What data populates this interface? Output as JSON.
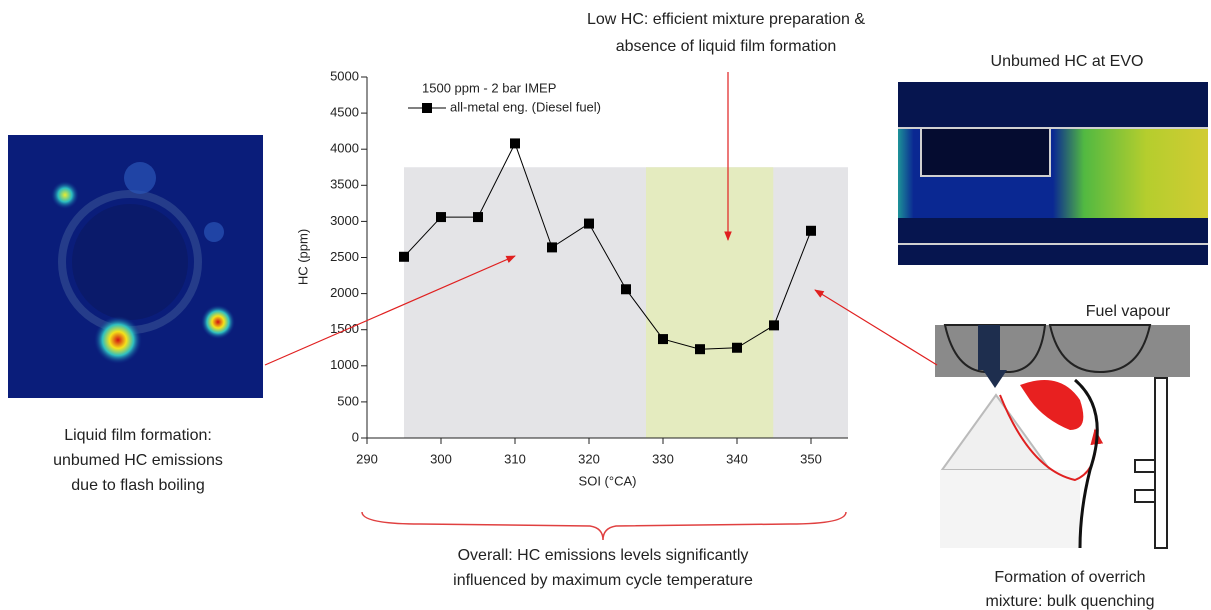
{
  "chart_data": {
    "type": "line",
    "note": "1500 ppm - 2 bar IMEP",
    "x": [
      295,
      300,
      305,
      310,
      315,
      320,
      325,
      330,
      335,
      340,
      345,
      350
    ],
    "series": [
      {
        "name": "all-metal eng. (Diesel fuel)",
        "color": "#000000",
        "values": [
          2510,
          3060,
          3060,
          4080,
          2640,
          2970,
          2060,
          1370,
          1230,
          1250,
          1560,
          2870
        ]
      }
    ],
    "xlabel": "SOI (°CA)",
    "ylabel": "HC (ppm)",
    "xlim": [
      290,
      355
    ],
    "ylim": [
      0,
      5000
    ],
    "xticks": [
      290,
      300,
      310,
      320,
      330,
      340,
      350
    ],
    "yticks": [
      0,
      500,
      1000,
      1500,
      2000,
      2500,
      3000,
      3500,
      4000,
      4500,
      5000
    ],
    "bands": [
      {
        "from": 295,
        "to": 355,
        "top": 3750,
        "color": "#e4e4e7"
      },
      {
        "from": 327.7,
        "to": 344.9,
        "top": 3750,
        "color": "#e4ebbf"
      }
    ]
  },
  "annotations": {
    "top": [
      "Low HC: efficient mixture preparation &",
      "absence of liquid film formation"
    ],
    "evo_image": "Unbumed HC at EVO",
    "left": [
      "Liquid film formation:",
      "unbumed HC emissions",
      "due to flash boiling"
    ],
    "vapour": "Fuel vapour",
    "bottom": [
      "Overall: HC emissions levels significantly",
      "influenced by maximum cycle temperature"
    ],
    "right": [
      "Formation of overrich",
      "mixture: bulk quenching"
    ]
  }
}
